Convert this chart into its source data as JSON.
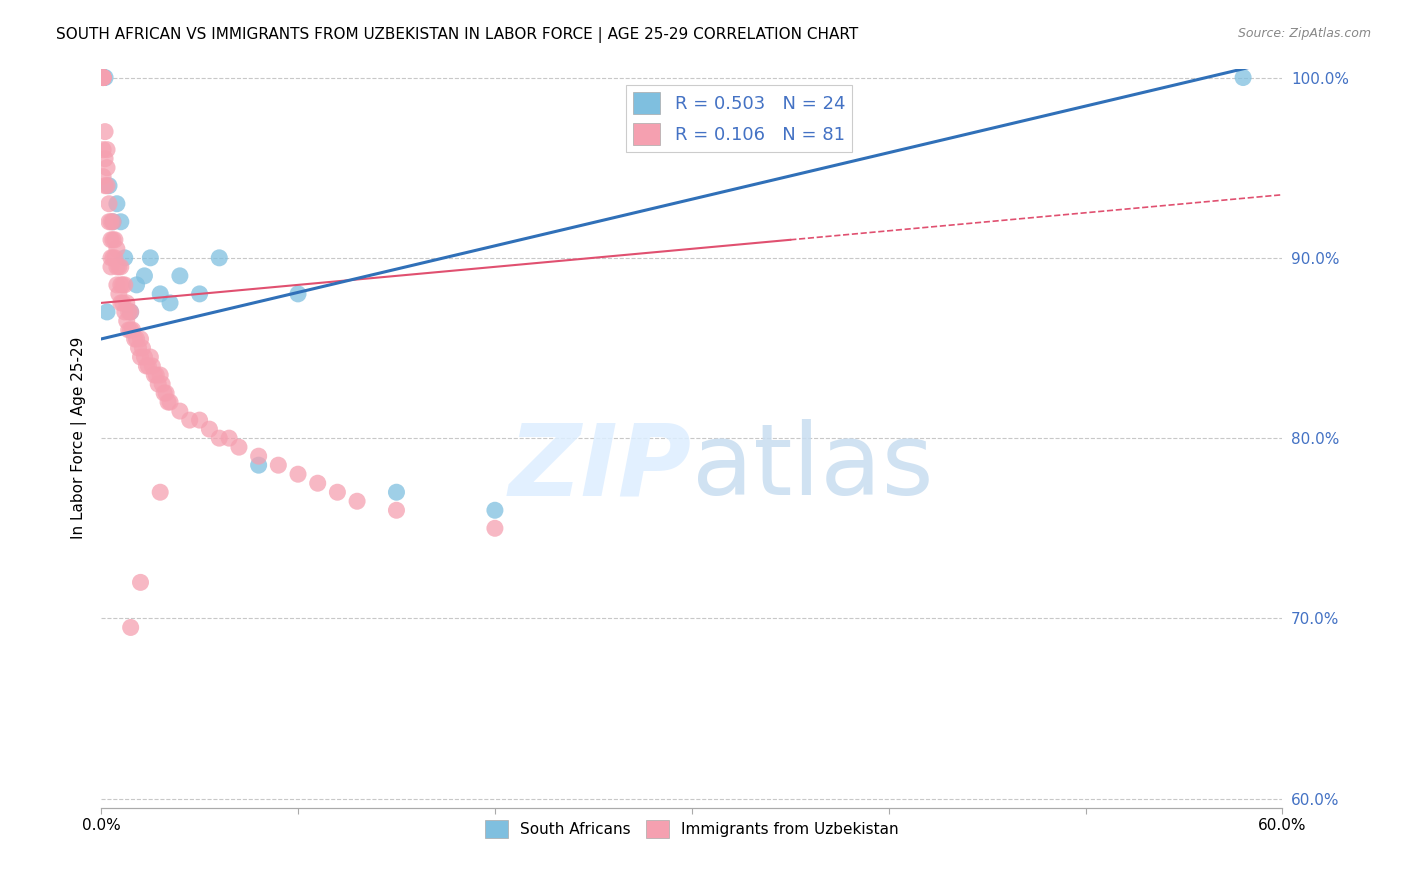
{
  "title": "SOUTH AFRICAN VS IMMIGRANTS FROM UZBEKISTAN IN LABOR FORCE | AGE 25-29 CORRELATION CHART",
  "source": "Source: ZipAtlas.com",
  "ylabel": "In Labor Force | Age 25-29",
  "xlim": [
    0.0,
    0.6
  ],
  "ylim": [
    0.595,
    1.005
  ],
  "yticks": [
    0.6,
    0.7,
    0.8,
    0.9,
    1.0
  ],
  "ytick_labels": [
    "60.0%",
    "70.0%",
    "80.0%",
    "90.0%",
    "100.0%"
  ],
  "xticks": [
    0.0,
    0.1,
    0.2,
    0.3,
    0.4,
    0.5,
    0.6
  ],
  "xtick_labels": [
    "0.0%",
    "",
    "",
    "",
    "",
    "",
    "60.0%"
  ],
  "blue_R": 0.503,
  "blue_N": 24,
  "pink_R": 0.106,
  "pink_N": 81,
  "blue_color": "#7fbfdf",
  "pink_color": "#f5a0b0",
  "blue_line_color": "#3070b8",
  "pink_line_color": "#e05070",
  "grid_color": "#c8c8c8",
  "blue_points_x": [
    0.001,
    0.001,
    0.001,
    0.002,
    0.003,
    0.004,
    0.006,
    0.008,
    0.01,
    0.012,
    0.015,
    0.018,
    0.022,
    0.025,
    0.03,
    0.035,
    0.04,
    0.05,
    0.06,
    0.08,
    0.1,
    0.15,
    0.2,
    0.58
  ],
  "blue_points_y": [
    1.0,
    1.0,
    1.0,
    1.0,
    0.87,
    0.94,
    0.92,
    0.93,
    0.92,
    0.9,
    0.87,
    0.885,
    0.89,
    0.9,
    0.88,
    0.875,
    0.89,
    0.88,
    0.9,
    0.785,
    0.88,
    0.77,
    0.76,
    1.0
  ],
  "pink_points_x": [
    0.001,
    0.001,
    0.001,
    0.001,
    0.001,
    0.001,
    0.001,
    0.002,
    0.002,
    0.002,
    0.003,
    0.003,
    0.003,
    0.004,
    0.004,
    0.005,
    0.005,
    0.005,
    0.005,
    0.006,
    0.006,
    0.006,
    0.007,
    0.007,
    0.008,
    0.008,
    0.008,
    0.009,
    0.009,
    0.01,
    0.01,
    0.01,
    0.011,
    0.011,
    0.012,
    0.012,
    0.013,
    0.013,
    0.014,
    0.014,
    0.015,
    0.015,
    0.016,
    0.017,
    0.018,
    0.019,
    0.02,
    0.02,
    0.021,
    0.022,
    0.023,
    0.024,
    0.025,
    0.026,
    0.027,
    0.028,
    0.029,
    0.03,
    0.031,
    0.032,
    0.033,
    0.034,
    0.035,
    0.04,
    0.045,
    0.05,
    0.055,
    0.06,
    0.065,
    0.07,
    0.08,
    0.09,
    0.1,
    0.11,
    0.12,
    0.13,
    0.15,
    0.2,
    0.03,
    0.02,
    0.015
  ],
  "pink_points_y": [
    1.0,
    1.0,
    1.0,
    1.0,
    1.0,
    0.96,
    0.945,
    0.97,
    0.955,
    0.94,
    0.96,
    0.95,
    0.94,
    0.93,
    0.92,
    0.92,
    0.91,
    0.9,
    0.895,
    0.92,
    0.91,
    0.9,
    0.91,
    0.9,
    0.905,
    0.895,
    0.885,
    0.895,
    0.88,
    0.895,
    0.885,
    0.875,
    0.885,
    0.875,
    0.885,
    0.87,
    0.875,
    0.865,
    0.87,
    0.86,
    0.87,
    0.86,
    0.86,
    0.855,
    0.855,
    0.85,
    0.855,
    0.845,
    0.85,
    0.845,
    0.84,
    0.84,
    0.845,
    0.84,
    0.835,
    0.835,
    0.83,
    0.835,
    0.83,
    0.825,
    0.825,
    0.82,
    0.82,
    0.815,
    0.81,
    0.81,
    0.805,
    0.8,
    0.8,
    0.795,
    0.79,
    0.785,
    0.78,
    0.775,
    0.77,
    0.765,
    0.76,
    0.75,
    0.77,
    0.72,
    0.695
  ]
}
